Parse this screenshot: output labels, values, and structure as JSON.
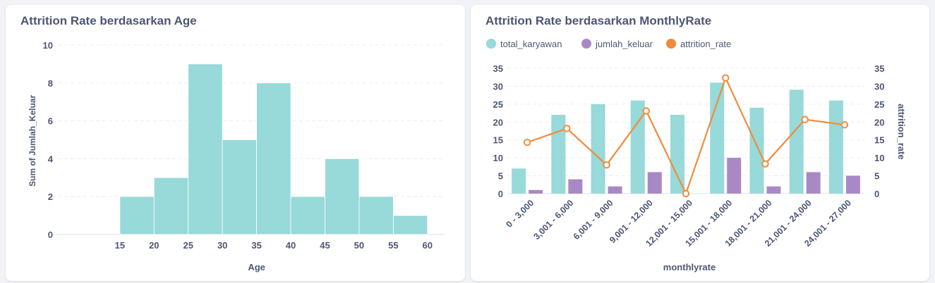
{
  "colors": {
    "teal": "#98d9d9",
    "purple": "#a989c5",
    "orange": "#f08c3c",
    "text": "#4c5773",
    "grid": "#ebedf0"
  },
  "chart_data": [
    {
      "type": "bar",
      "title": "Attrition Rate berdasarkan Age",
      "xlabel": "Age",
      "ylabel": "Sum of Jumlah_Keluar",
      "ylim": [
        0,
        10
      ],
      "yticks": [
        "0",
        "2",
        "4",
        "6",
        "8",
        "10"
      ],
      "xticks": [
        "15",
        "20",
        "25",
        "30",
        "35",
        "40",
        "45",
        "50",
        "55",
        "60"
      ],
      "bins": [
        {
          "x0": 15,
          "x1": 20,
          "value": 2
        },
        {
          "x0": 20,
          "x1": 25,
          "value": 3
        },
        {
          "x0": 25,
          "x1": 30,
          "value": 9
        },
        {
          "x0": 30,
          "x1": 35,
          "value": 5
        },
        {
          "x0": 35,
          "x1": 40,
          "value": 8
        },
        {
          "x0": 40,
          "x1": 45,
          "value": 2
        },
        {
          "x0": 45,
          "x1": 50,
          "value": 4
        },
        {
          "x0": 50,
          "x1": 55,
          "value": 2
        },
        {
          "x0": 55,
          "x1": 60,
          "value": 1
        }
      ],
      "grid": true,
      "series_color": "#98d9d9"
    },
    {
      "type": "bar",
      "title": "Attrition Rate berdasarkan MonthlyRate",
      "xlabel": "monthlyrate",
      "ylabel": "",
      "y2label": "attrition_rate",
      "ylim": [
        0,
        35
      ],
      "y2lim": [
        0,
        35
      ],
      "yticks": [
        "0",
        "5",
        "10",
        "15",
        "20",
        "25",
        "30",
        "35"
      ],
      "categories": [
        "0 - 3,000",
        "3,001 - 6,000",
        "6,001 - 9,000",
        "9,001 - 12,000",
        "12,001 - 15,000",
        "15,001 - 18,000",
        "18,001 - 21,000",
        "21,001 - 24,000",
        "24,001 - 27,000"
      ],
      "series": [
        {
          "name": "total_karyawan",
          "type": "bar",
          "axis": "left",
          "color": "#98d9d9",
          "values": [
            7,
            22,
            25,
            26,
            22,
            31,
            24,
            29,
            26
          ]
        },
        {
          "name": "jumlah_keluar",
          "type": "bar",
          "axis": "left",
          "color": "#a989c5",
          "values": [
            1,
            4,
            2,
            6,
            0,
            10,
            2,
            6,
            5
          ]
        },
        {
          "name": "attrition_rate",
          "type": "line",
          "axis": "right",
          "color": "#f08c3c",
          "values": [
            14.3,
            18.2,
            8.0,
            23.1,
            0,
            32.3,
            8.3,
            20.7,
            19.2
          ]
        }
      ],
      "legend_position": "top-left",
      "grid": true
    }
  ]
}
